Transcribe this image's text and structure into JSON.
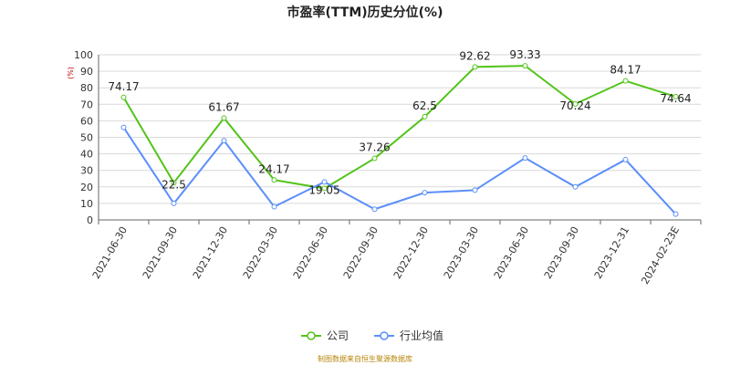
{
  "chart_data": {
    "type": "line",
    "title": "市盈率(TTM)历史分位(%)",
    "ylabel": "(%)",
    "xlabel": "",
    "ylim": [
      0,
      100
    ],
    "yticks": [
      0,
      10,
      20,
      30,
      40,
      50,
      60,
      70,
      80,
      90,
      100
    ],
    "grid": true,
    "legend_position": "bottom",
    "categories": [
      "2021-06-30",
      "2021-09-30",
      "2021-12-30",
      "2022-03-30",
      "2022-06-30",
      "2022-09-30",
      "2022-12-30",
      "2023-03-30",
      "2023-06-30",
      "2023-09-30",
      "2023-12-31",
      "2024-02-23E"
    ],
    "series": [
      {
        "name": "公司",
        "color": "#52c41a",
        "values": [
          74.17,
          22.5,
          61.67,
          24.17,
          19.05,
          37.26,
          62.5,
          92.62,
          93.33,
          70.24,
          84.17,
          74.64
        ],
        "labels": [
          "74.17",
          "22.5",
          "61.67",
          "24.17",
          "19.05",
          "37.26",
          "62.5",
          "92.62",
          "93.33",
          "70.24",
          "84.17",
          "74.64"
        ]
      },
      {
        "name": "行业均值",
        "color": "#5b8ff9",
        "values": [
          56,
          10,
          48,
          8,
          23,
          6.5,
          16.5,
          18,
          37.5,
          20,
          36.5,
          3.5
        ]
      }
    ],
    "source": "制图数据来自恒生聚源数据库"
  }
}
